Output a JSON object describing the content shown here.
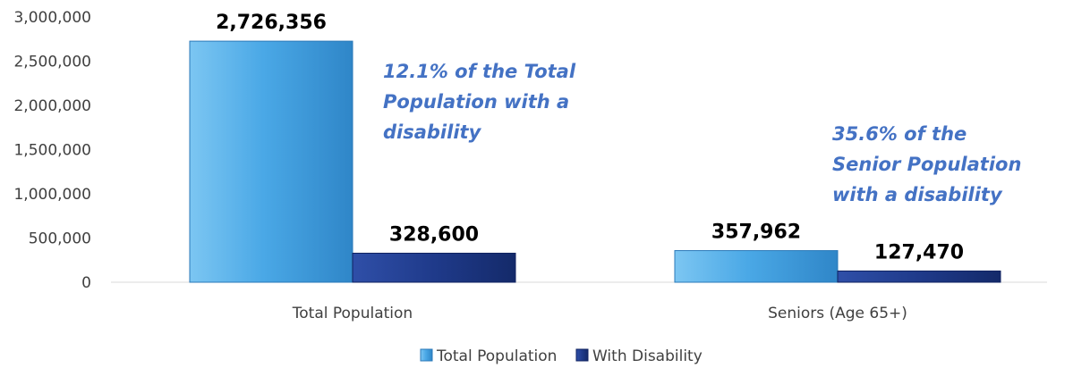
{
  "chart_data": {
    "type": "bar",
    "categories": [
      "Total Population",
      "Seniors (Age 65+)"
    ],
    "series": [
      {
        "name": "Total Population",
        "values": [
          2726356,
          357962
        ],
        "labels": [
          "2,726,356",
          "357,962"
        ],
        "color": "#4aa8e6"
      },
      {
        "name": "With Disability",
        "values": [
          328600,
          127470
        ],
        "labels": [
          "328,600",
          "127,470"
        ],
        "color": "#1f3a8a"
      }
    ],
    "ylim": [
      0,
      3000000
    ],
    "yticks": [
      "0",
      "500,000",
      "1,000,000",
      "1,500,000",
      "2,000,000",
      "2,500,000",
      "3,000,000"
    ],
    "grid": false,
    "legend_position": "bottom",
    "annotations": [
      {
        "lines": [
          "12.1% of the Total",
          "Population with a",
          "disability"
        ]
      },
      {
        "lines": [
          "35.6% of the",
          "Senior Population",
          "with a disability"
        ]
      }
    ],
    "annotation_color": "#4472c4"
  }
}
